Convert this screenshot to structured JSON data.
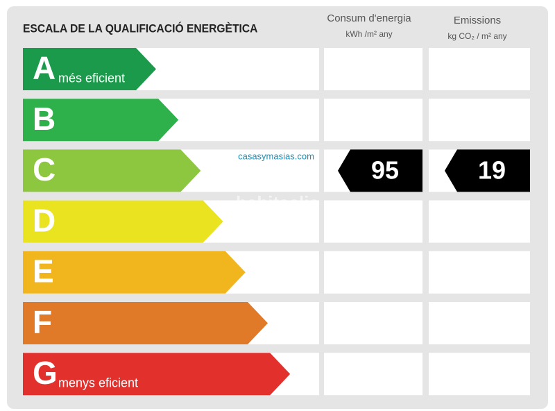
{
  "header": {
    "title": "ESCALA DE LA QUALIFICACIÓ ENERGÈTICA",
    "columns": [
      {
        "title": "Consum d'energia",
        "unit": "kWh /m² any"
      },
      {
        "title": "Emissions",
        "unit": "kg CO₂ / m² any"
      }
    ]
  },
  "rows": [
    {
      "letter": "A",
      "label": "més eficient",
      "color": "#1b9a4b"
    },
    {
      "letter": "B",
      "color": "#2eb14b"
    },
    {
      "letter": "C",
      "color": "#8dc63f",
      "energy": "95",
      "emissions": "19"
    },
    {
      "letter": "D",
      "color": "#e9e41f"
    },
    {
      "letter": "E",
      "color": "#f1b61d"
    },
    {
      "letter": "F",
      "color": "#e07a28"
    },
    {
      "letter": "G",
      "label": "menys eficient",
      "color": "#e2302d"
    }
  ],
  "watermarks": {
    "brand": "casasymasias.com",
    "site": "habitaclia"
  }
}
